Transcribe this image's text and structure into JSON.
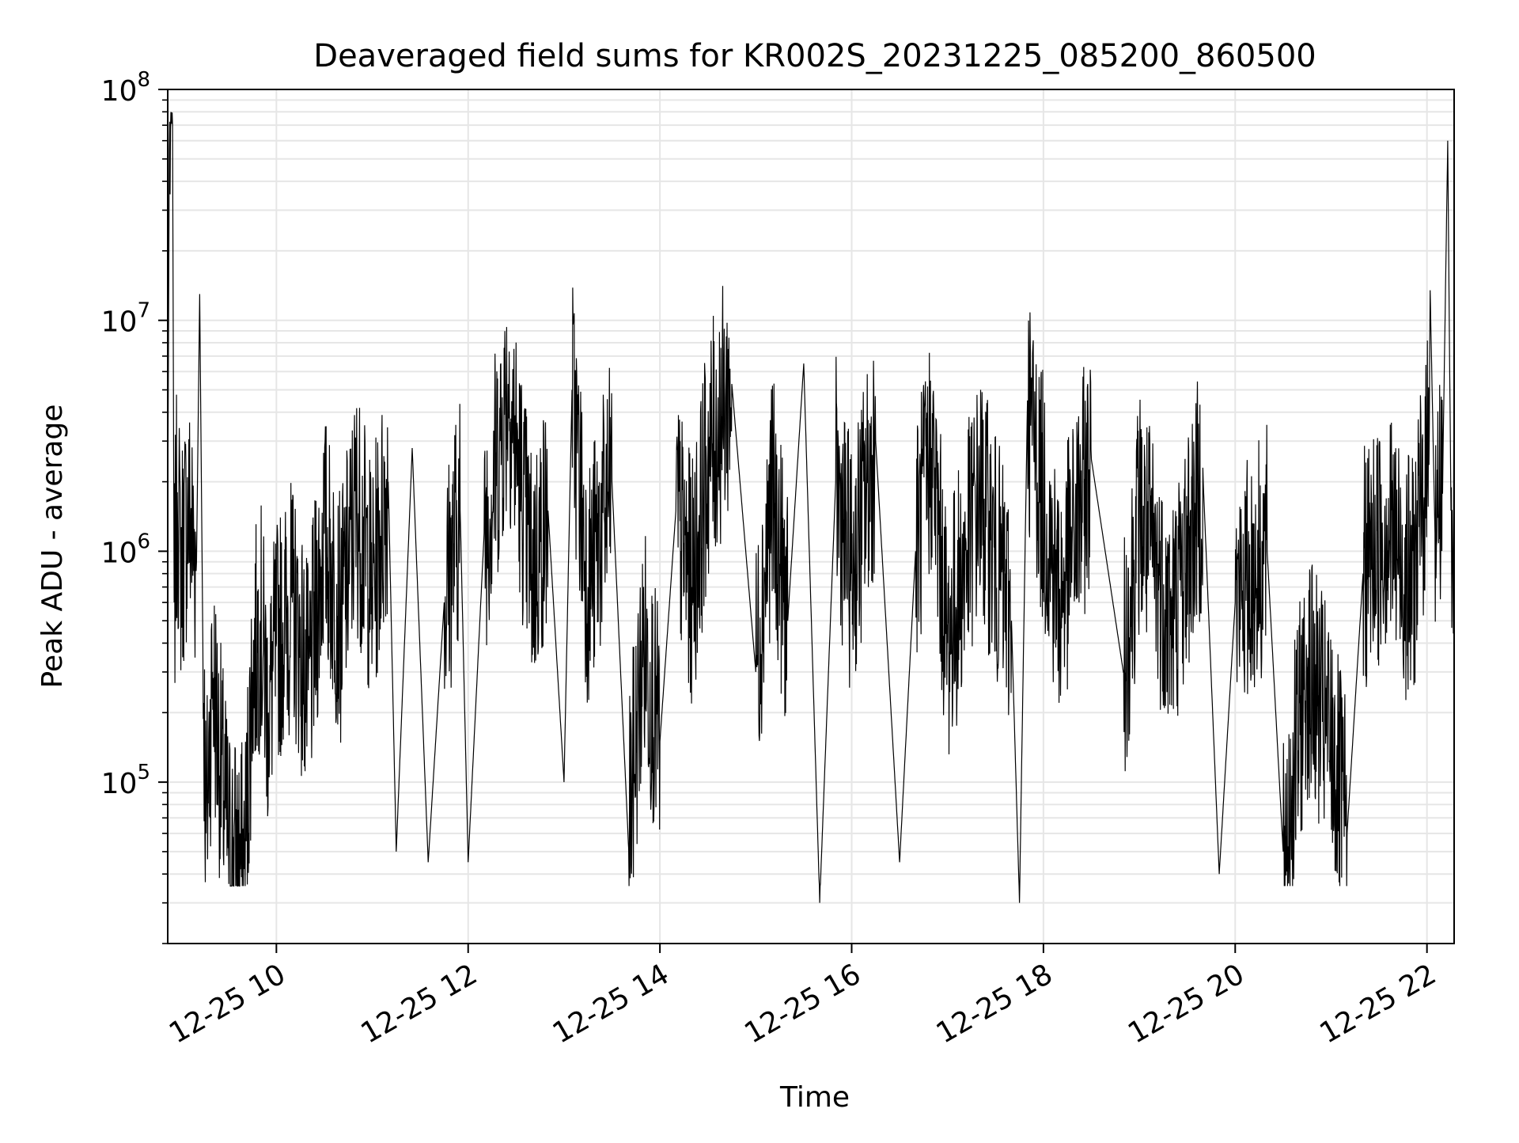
{
  "chart_data": {
    "type": "line",
    "title": "Deaveraged field sums for KR002S_20231225_085200_860500",
    "xlabel": "Time",
    "ylabel": "Peak ADU - average",
    "y_scale": "log",
    "ylim": [
      20000,
      100000000
    ],
    "xlim": [
      "2023-12-25T08:52",
      "2023-12-25T22:17"
    ],
    "x_ticks": [
      {
        "at": "2023-12-25T10:00",
        "label": "12-25 10"
      },
      {
        "at": "2023-12-25T12:00",
        "label": "12-25 12"
      },
      {
        "at": "2023-12-25T14:00",
        "label": "12-25 14"
      },
      {
        "at": "2023-12-25T16:00",
        "label": "12-25 16"
      },
      {
        "at": "2023-12-25T18:00",
        "label": "12-25 18"
      },
      {
        "at": "2023-12-25T20:00",
        "label": "12-25 20"
      },
      {
        "at": "2023-12-25T22:00",
        "label": "12-25 22"
      }
    ],
    "y_ticks": [
      {
        "value": 100000,
        "base": "10",
        "exp": "5"
      },
      {
        "value": 1000000,
        "base": "10",
        "exp": "6"
      },
      {
        "value": 10000000,
        "base": "10",
        "exp": "7"
      },
      {
        "value": 100000000,
        "base": "10",
        "exp": "8"
      }
    ],
    "grid": true,
    "minor_grid": true,
    "legend": "none",
    "line_color": "#000000",
    "grid_color": "#e6e6e6",
    "series": [
      {
        "points": [
          [
            "2023-12-25T08:52",
            1300000
          ],
          [
            "2023-12-25T08:53",
            55000000
          ],
          [
            "2023-12-25T08:55",
            70000000
          ],
          [
            "2023-12-25T08:56",
            600000
          ],
          [
            "2023-12-25T08:58",
            1800000
          ],
          [
            "2023-12-25T09:00",
            900000
          ],
          [
            "2023-12-25T09:05",
            1500000
          ],
          [
            "2023-12-25T09:10",
            900000
          ],
          [
            "2023-12-25T09:12",
            13000000
          ],
          [
            "2023-12-25T09:14",
            400000
          ],
          [
            "2023-12-25T09:16",
            60000
          ],
          [
            "2023-12-25T09:20",
            300000
          ],
          [
            "2023-12-25T09:25",
            120000
          ],
          [
            "2023-12-25T09:30",
            55000
          ],
          [
            "2023-12-25T09:35",
            48000
          ],
          [
            "2023-12-25T09:40",
            42000
          ],
          [
            "2023-12-25T09:45",
            300000
          ],
          [
            "2023-12-25T09:50",
            500000
          ],
          [
            "2023-12-25T09:55",
            200000
          ],
          [
            "2023-12-25T10:00",
            400000
          ],
          [
            "2023-12-25T10:10",
            600000
          ],
          [
            "2023-12-25T10:20",
            250000
          ],
          [
            "2023-12-25T10:30",
            1200000
          ],
          [
            "2023-12-25T10:40",
            500000
          ],
          [
            "2023-12-25T10:50",
            1600000
          ],
          [
            "2023-12-25T11:00",
            700000
          ],
          [
            "2023-12-25T11:10",
            2000000
          ],
          [
            "2023-12-25T11:15",
            50000
          ],
          [
            "2023-12-25T11:25",
            2800000
          ],
          [
            "2023-12-25T11:35",
            45000
          ],
          [
            "2023-12-25T11:45",
            600000
          ],
          [
            "2023-12-25T11:55",
            1500000
          ],
          [
            "2023-12-25T12:00",
            45000
          ],
          [
            "2023-12-25T12:10",
            1200000
          ],
          [
            "2023-12-25T12:20",
            3000000
          ],
          [
            "2023-12-25T12:25",
            5300000
          ],
          [
            "2023-12-25T12:40",
            800000
          ],
          [
            "2023-12-25T12:50",
            1500000
          ],
          [
            "2023-12-25T13:00",
            100000
          ],
          [
            "2023-12-25T13:05",
            5000000
          ],
          [
            "2023-12-25T13:15",
            700000
          ],
          [
            "2023-12-25T13:30",
            2000000
          ],
          [
            "2023-12-25T13:40",
            60000
          ],
          [
            "2023-12-25T13:50",
            400000
          ],
          [
            "2023-12-25T14:00",
            150000
          ],
          [
            "2023-12-25T14:10",
            1500000
          ],
          [
            "2023-12-25T14:20",
            700000
          ],
          [
            "2023-12-25T14:30",
            2500000
          ],
          [
            "2023-12-25T14:45",
            5300000
          ],
          [
            "2023-12-25T15:00",
            300000
          ],
          [
            "2023-12-25T15:10",
            1800000
          ],
          [
            "2023-12-25T15:20",
            500000
          ],
          [
            "2023-12-25T15:30",
            6500000
          ],
          [
            "2023-12-25T15:40",
            30000
          ],
          [
            "2023-12-25T15:50",
            2000000
          ],
          [
            "2023-12-25T16:00",
            800000
          ],
          [
            "2023-12-25T16:15",
            3000000
          ],
          [
            "2023-12-25T16:30",
            45000
          ],
          [
            "2023-12-25T16:40",
            1000000
          ],
          [
            "2023-12-25T16:50",
            2800000
          ],
          [
            "2023-12-25T17:00",
            400000
          ],
          [
            "2023-12-25T17:20",
            1800000
          ],
          [
            "2023-12-25T17:40",
            500000
          ],
          [
            "2023-12-25T17:45",
            30000
          ],
          [
            "2023-12-25T17:50",
            4500000
          ],
          [
            "2023-12-25T18:10",
            600000
          ],
          [
            "2023-12-25T18:30",
            2500000
          ],
          [
            "2023-12-25T18:50",
            300000
          ],
          [
            "2023-12-25T19:00",
            1500000
          ],
          [
            "2023-12-25T19:20",
            500000
          ],
          [
            "2023-12-25T19:40",
            2000000
          ],
          [
            "2023-12-25T19:50",
            40000
          ],
          [
            "2023-12-25T20:00",
            600000
          ],
          [
            "2023-12-25T20:20",
            1000000
          ],
          [
            "2023-12-25T20:30",
            50000
          ],
          [
            "2023-12-25T20:45",
            300000
          ],
          [
            "2023-12-25T21:00",
            150000
          ],
          [
            "2023-12-25T21:10",
            60000
          ],
          [
            "2023-12-25T21:20",
            800000
          ],
          [
            "2023-12-25T21:35",
            1300000
          ],
          [
            "2023-12-25T21:50",
            700000
          ],
          [
            "2023-12-25T22:00",
            2200000
          ],
          [
            "2023-12-25T22:02",
            13500000
          ],
          [
            "2023-12-25T22:05",
            1200000
          ],
          [
            "2023-12-25T22:10",
            2500000
          ],
          [
            "2023-12-25T22:13",
            60000000
          ],
          [
            "2023-12-25T22:15",
            1500000
          ],
          [
            "2023-12-25T22:17",
            800000
          ]
        ]
      }
    ]
  }
}
